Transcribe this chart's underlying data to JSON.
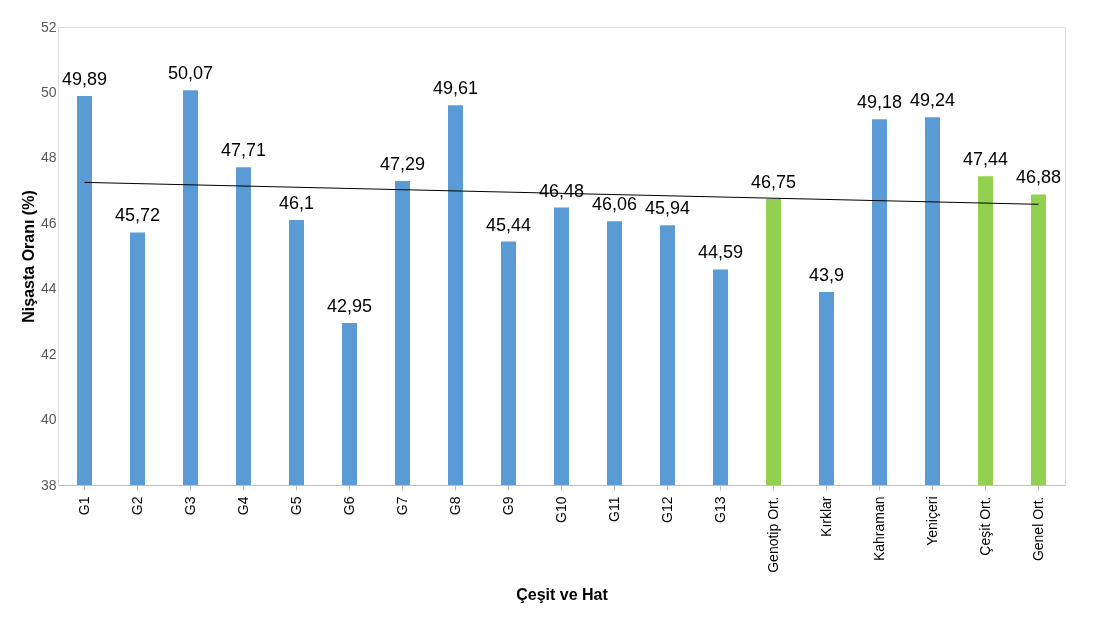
{
  "chart_data": {
    "type": "bar",
    "xlabel": "Çeşit ve Hat",
    "ylabel": "Nişasta Oranı (%)",
    "categories": [
      "G1",
      "G2",
      "G3",
      "G4",
      "G5",
      "G6",
      "G7",
      "G8",
      "G9",
      "G10",
      "G11",
      "G12",
      "G13",
      "Genotip Ort.",
      "Kırklar",
      "Kahraman",
      "Yeniçeri",
      "Çeşit Ort.",
      "Genel Ort."
    ],
    "ylim": [
      38,
      52
    ],
    "yticks": [
      38,
      40,
      42,
      44,
      46,
      48,
      50,
      52
    ],
    "grid": false,
    "series": [
      {
        "values": [
          49.89,
          45.72,
          50.07,
          47.71,
          46.1,
          42.95,
          47.29,
          49.61,
          45.44,
          46.48,
          46.06,
          45.94,
          44.59,
          46.75,
          43.9,
          49.18,
          49.24,
          47.44,
          46.88
        ],
        "colors": [
          "#5b9bd5",
          "#5b9bd5",
          "#5b9bd5",
          "#5b9bd5",
          "#5b9bd5",
          "#5b9bd5",
          "#5b9bd5",
          "#5b9bd5",
          "#5b9bd5",
          "#5b9bd5",
          "#5b9bd5",
          "#5b9bd5",
          "#5b9bd5",
          "#92d050",
          "#5b9bd5",
          "#5b9bd5",
          "#5b9bd5",
          "#92d050",
          "#92d050"
        ],
        "value_labels": [
          "49,89",
          "45,72",
          "50,07",
          "47,71",
          "46,1",
          "42,95",
          "47,29",
          "49,61",
          "45,44",
          "46,48",
          "46,06",
          "45,94",
          "44,59",
          "46,75",
          "43,9",
          "49,18",
          "49,24",
          "47,44",
          "46,88"
        ]
      },
      {
        "type": "line",
        "color": "#000000",
        "values": [
          47.25,
          null,
          null,
          null,
          null,
          null,
          null,
          null,
          null,
          null,
          null,
          null,
          null,
          null,
          null,
          null,
          null,
          null,
          46.58
        ]
      }
    ]
  }
}
